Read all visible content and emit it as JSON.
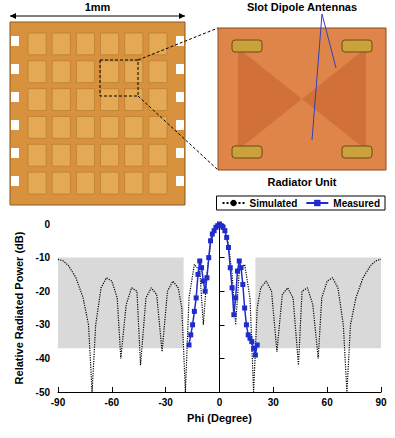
{
  "chart_data": {
    "type": "line",
    "annotations": [
      "1mm",
      "Slot Dipole Antennas",
      "Radiator Unit"
    ],
    "xlabel": "Phi (Degree)",
    "ylabel": "Relative Radiated Power (dB)",
    "xlim": [
      -90,
      90
    ],
    "xticks": [
      -90,
      -60,
      -30,
      0,
      30,
      60,
      90
    ],
    "ylim": [
      -50,
      0
    ],
    "yticks": [
      -50,
      -40,
      -30,
      -20,
      -10,
      0
    ],
    "grid": false,
    "legend": "top right",
    "shaded_regions": [
      {
        "x": [
          -90,
          -20
        ],
        "y": [
          -37,
          -10
        ]
      },
      {
        "x": [
          20,
          90
        ],
        "y": [
          -37,
          -10
        ]
      }
    ],
    "series": [
      {
        "name": "Simulated",
        "color": "#000000",
        "line_style": "dotted",
        "marker": "none",
        "x": [
          -90,
          -87,
          -84,
          -80,
          -76,
          -73,
          -71,
          -69,
          -66,
          -63,
          -60,
          -57,
          -55,
          -52,
          -49,
          -46,
          -44,
          -41,
          -38,
          -35,
          -32,
          -29,
          -26,
          -23,
          -21,
          -19,
          -17,
          -14,
          -11,
          -9,
          -7,
          -5,
          -3,
          0,
          3,
          5,
          7,
          9,
          11,
          14,
          17,
          19,
          21,
          23,
          26,
          29,
          32,
          35,
          38,
          41,
          44,
          46,
          49,
          52,
          55,
          57,
          60,
          63,
          66,
          69,
          71,
          73,
          76,
          80,
          84,
          87,
          90
        ],
        "values": [
          -10.5,
          -11,
          -12.5,
          -16,
          -22,
          -30,
          -50,
          -30,
          -19,
          -16,
          -17,
          -22,
          -40,
          -24,
          -19,
          -20,
          -42,
          -22,
          -19,
          -21,
          -38,
          -20,
          -17,
          -19,
          -25,
          -50,
          -22,
          -12,
          -14,
          -30,
          -15,
          -6,
          -2,
          0,
          -2,
          -6,
          -15,
          -30,
          -14,
          -12,
          -22,
          -50,
          -25,
          -19,
          -17,
          -20,
          -38,
          -21,
          -19,
          -22,
          -42,
          -20,
          -19,
          -24,
          -40,
          -22,
          -17,
          -16,
          -19,
          -30,
          -50,
          -30,
          -22,
          -16,
          -12.5,
          -11,
          -10.5
        ]
      },
      {
        "name": "Measured",
        "color": "#1f2ccc",
        "line_style": "solid",
        "marker": "square",
        "x": [
          -17,
          -16,
          -15,
          -14,
          -13,
          -12,
          -11,
          -10,
          -9,
          -8,
          -7,
          -6,
          -5,
          -4,
          -3,
          -2,
          -1,
          0,
          1,
          2,
          3,
          4,
          5,
          6,
          7,
          8,
          9,
          10,
          11,
          12,
          13,
          14,
          15,
          16,
          17,
          18,
          19,
          20,
          21
        ],
        "values": [
          -36,
          -33,
          -30,
          -26,
          -22,
          -15,
          -11,
          -13,
          -17,
          -20,
          -16,
          -10,
          -5,
          -3,
          -2,
          -1,
          -0.5,
          0,
          -0.5,
          -1,
          -2,
          -4,
          -7,
          -13,
          -19,
          -27,
          -22,
          -14,
          -11,
          -13,
          -18,
          -25,
          -30,
          -33,
          -34,
          -35,
          -37,
          -39,
          -36
        ]
      }
    ]
  }
}
